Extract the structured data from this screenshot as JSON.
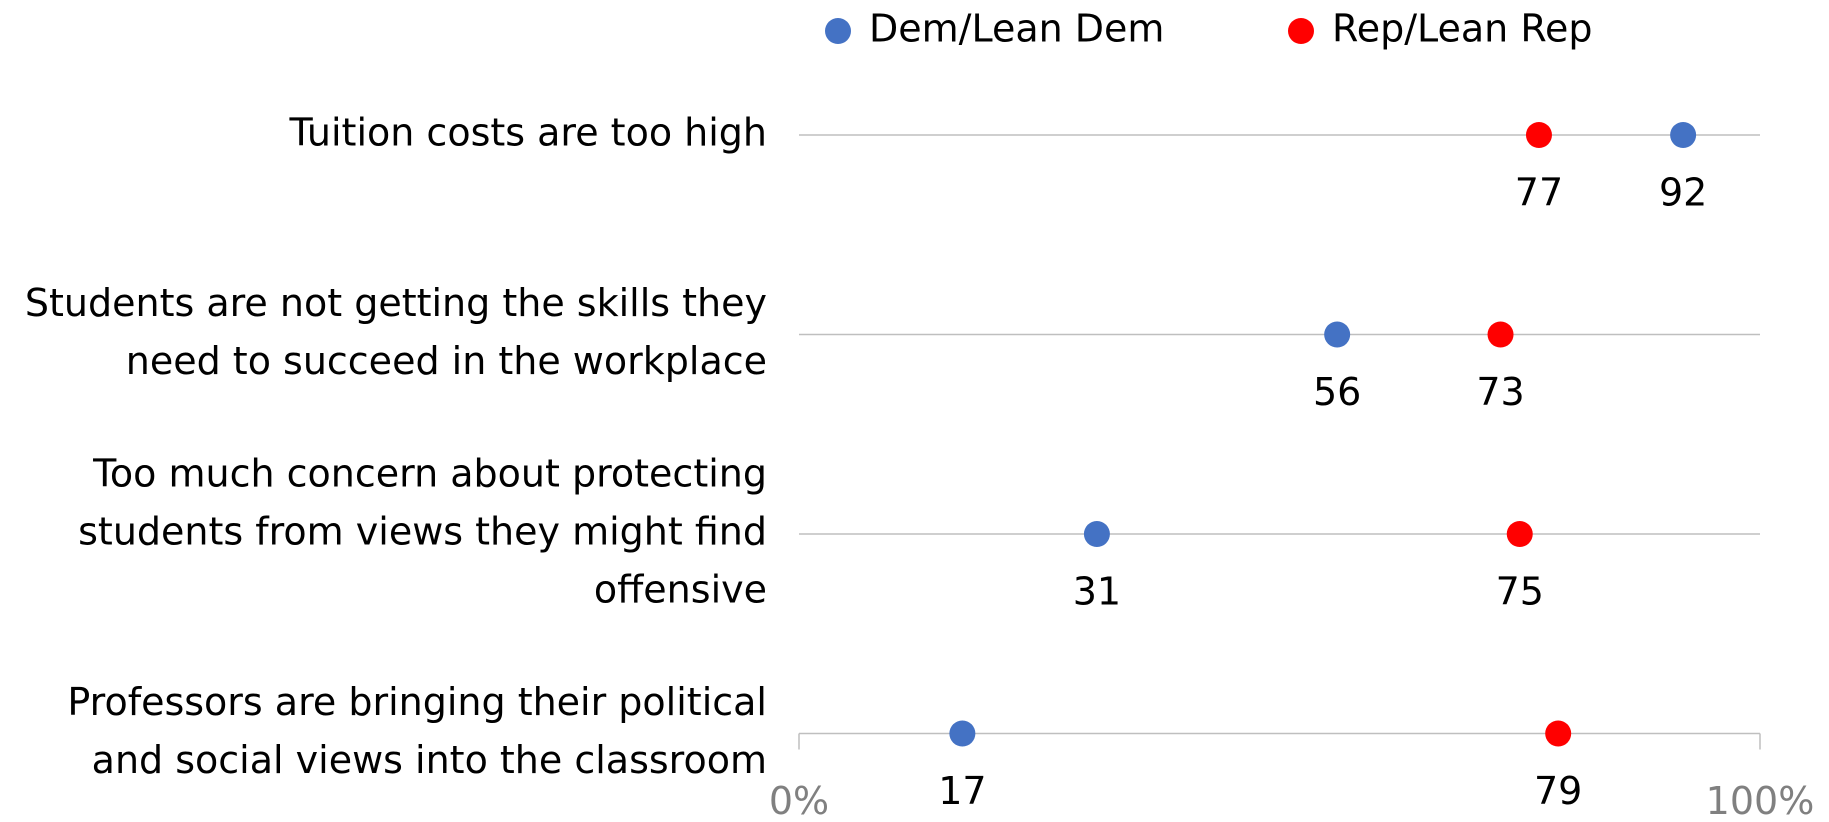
{
  "chart_data": {
    "type": "dot",
    "categories": [
      [
        "Tuition costs are too high"
      ],
      [
        "Students are not getting the skills they",
        "need to succeed in the workplace"
      ],
      [
        "Too much concern about protecting",
        "students from views they might find",
        "offensive"
      ],
      [
        "Professors are bringing their political",
        "and social views into the classroom"
      ]
    ],
    "series": [
      {
        "name": "Dem/Lean Dem",
        "color": "#4472c4",
        "values": [
          92,
          56,
          31,
          17
        ]
      },
      {
        "name": "Rep/Lean Rep",
        "color": "#ff0000",
        "values": [
          77,
          73,
          75,
          79
        ]
      }
    ],
    "xlim": [
      0,
      100
    ],
    "xticks": [
      {
        "value": 0,
        "label": "0%"
      },
      {
        "value": 100,
        "label": "100%"
      }
    ],
    "legend": "top"
  }
}
